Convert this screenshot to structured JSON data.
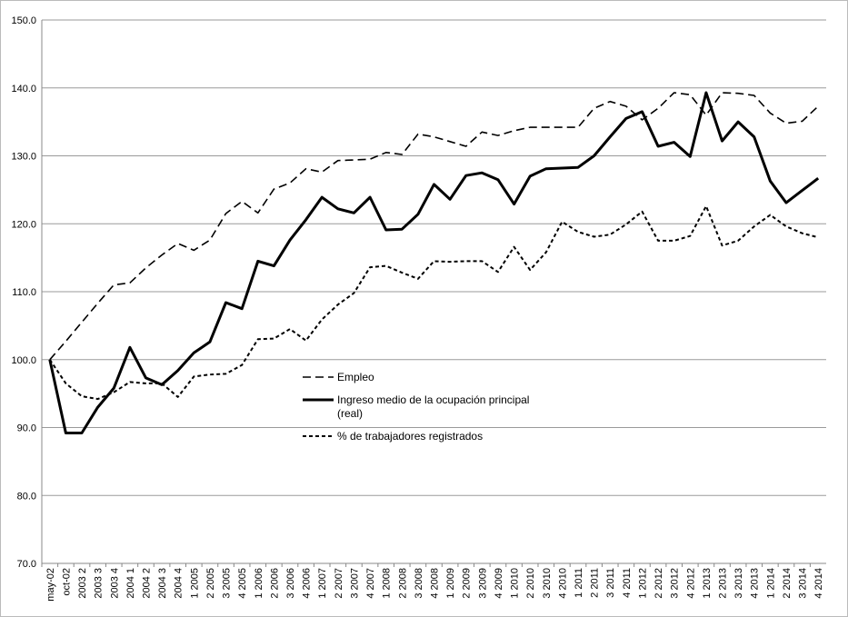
{
  "chart_data": {
    "type": "line",
    "categories": [
      "may-02",
      "oct-02",
      "2003 2",
      "2003 3",
      "2003 4",
      "2004 1",
      "2004 2",
      "2004 3",
      "2004 4",
      "1 2005",
      "2 2005",
      "3 2005",
      "4 2005",
      "1 2006",
      "2 2006",
      "3 2006",
      "4 2006",
      "1 2007",
      "2 2007",
      "3 2007",
      "4 2007",
      "1 2008",
      "2 2008",
      "3 2008",
      "4 2008",
      "1 2009",
      "2 2009",
      "3 2009",
      "4 2009",
      "1 2010",
      "2 2010",
      "3 2010",
      "4 2010",
      "1 2011",
      "2 2011",
      "3 2011",
      "4 2011",
      "1 2012",
      "2 2012",
      "3 2012",
      "4 2012",
      "1 2013",
      "2 2013",
      "3 2013",
      "4 2013",
      "1 2014",
      "2 2014",
      "3 2014",
      "4 2014"
    ],
    "series": [
      {
        "name": "Empleo",
        "color": "#000000",
        "dash": "long",
        "values": [
          100,
          102.7,
          105.5,
          108.3,
          111,
          111.3,
          113.5,
          115.4,
          117.1,
          116.1,
          117.6,
          121.5,
          123.3,
          121.6,
          125.1,
          126,
          128.1,
          127.6,
          129.3,
          129.4,
          129.5,
          130.5,
          130.2,
          133.2,
          132.8,
          132.1,
          131.4,
          133.5,
          133,
          133.7,
          134.2,
          134.2,
          134.2,
          134.2,
          137,
          138,
          137.3,
          135.3,
          137,
          139.3,
          139,
          136,
          139.3,
          139.2,
          138.9,
          136.3,
          134.8,
          135.1,
          137.3
        ]
      },
      {
        "name": "Ingreso medio de la ocupación principal (real)",
        "color": "#000000",
        "dash": "solid",
        "values": [
          100,
          89.2,
          89.2,
          93,
          95.8,
          101.8,
          97.3,
          96.3,
          98.4,
          101,
          102.6,
          108.4,
          107.5,
          114.5,
          113.8,
          117.6,
          120.6,
          123.9,
          122.2,
          121.6,
          123.9,
          119.1,
          119.2,
          121.4,
          125.8,
          123.6,
          127.1,
          127.5,
          126.5,
          122.9,
          127,
          128.1,
          128.2,
          128.3,
          130,
          132.8,
          135.5,
          136.5,
          131.4,
          132,
          129.9,
          139.3,
          132.2,
          135,
          132.8,
          126.3,
          123.1,
          124.9,
          126.7
        ]
      },
      {
        "name": "% de trabajadores registrados",
        "color": "#000000",
        "dash": "short",
        "values": [
          100,
          96.5,
          94.6,
          94.2,
          95.2,
          96.7,
          96.5,
          96.5,
          94.5,
          97.5,
          97.8,
          97.9,
          99.2,
          103,
          103.1,
          104.5,
          102.8,
          105.9,
          108.1,
          109.8,
          113.6,
          113.8,
          112.8,
          111.9,
          114.5,
          114.4,
          114.5,
          114.5,
          112.9,
          116.6,
          113.2,
          115.8,
          120.3,
          118.8,
          118.1,
          118.4,
          119.9,
          121.8,
          117.5,
          117.5,
          118.2,
          122.6,
          116.8,
          117.5,
          119.6,
          121.3,
          119.6,
          118.6,
          118
        ]
      }
    ],
    "ylim": [
      70,
      150
    ],
    "yticks": [
      {
        "value": 70,
        "label": "70.0"
      },
      {
        "value": 80,
        "label": "80.0"
      },
      {
        "value": 90,
        "label": "90.0"
      },
      {
        "value": 100,
        "label": "100.0"
      },
      {
        "value": 110,
        "label": "110.0"
      },
      {
        "value": 120,
        "label": "120.0"
      },
      {
        "value": 130,
        "label": "130.0"
      },
      {
        "value": 140,
        "label": "140.0"
      },
      {
        "value": 150,
        "label": "150.0"
      }
    ],
    "grid": true
  }
}
